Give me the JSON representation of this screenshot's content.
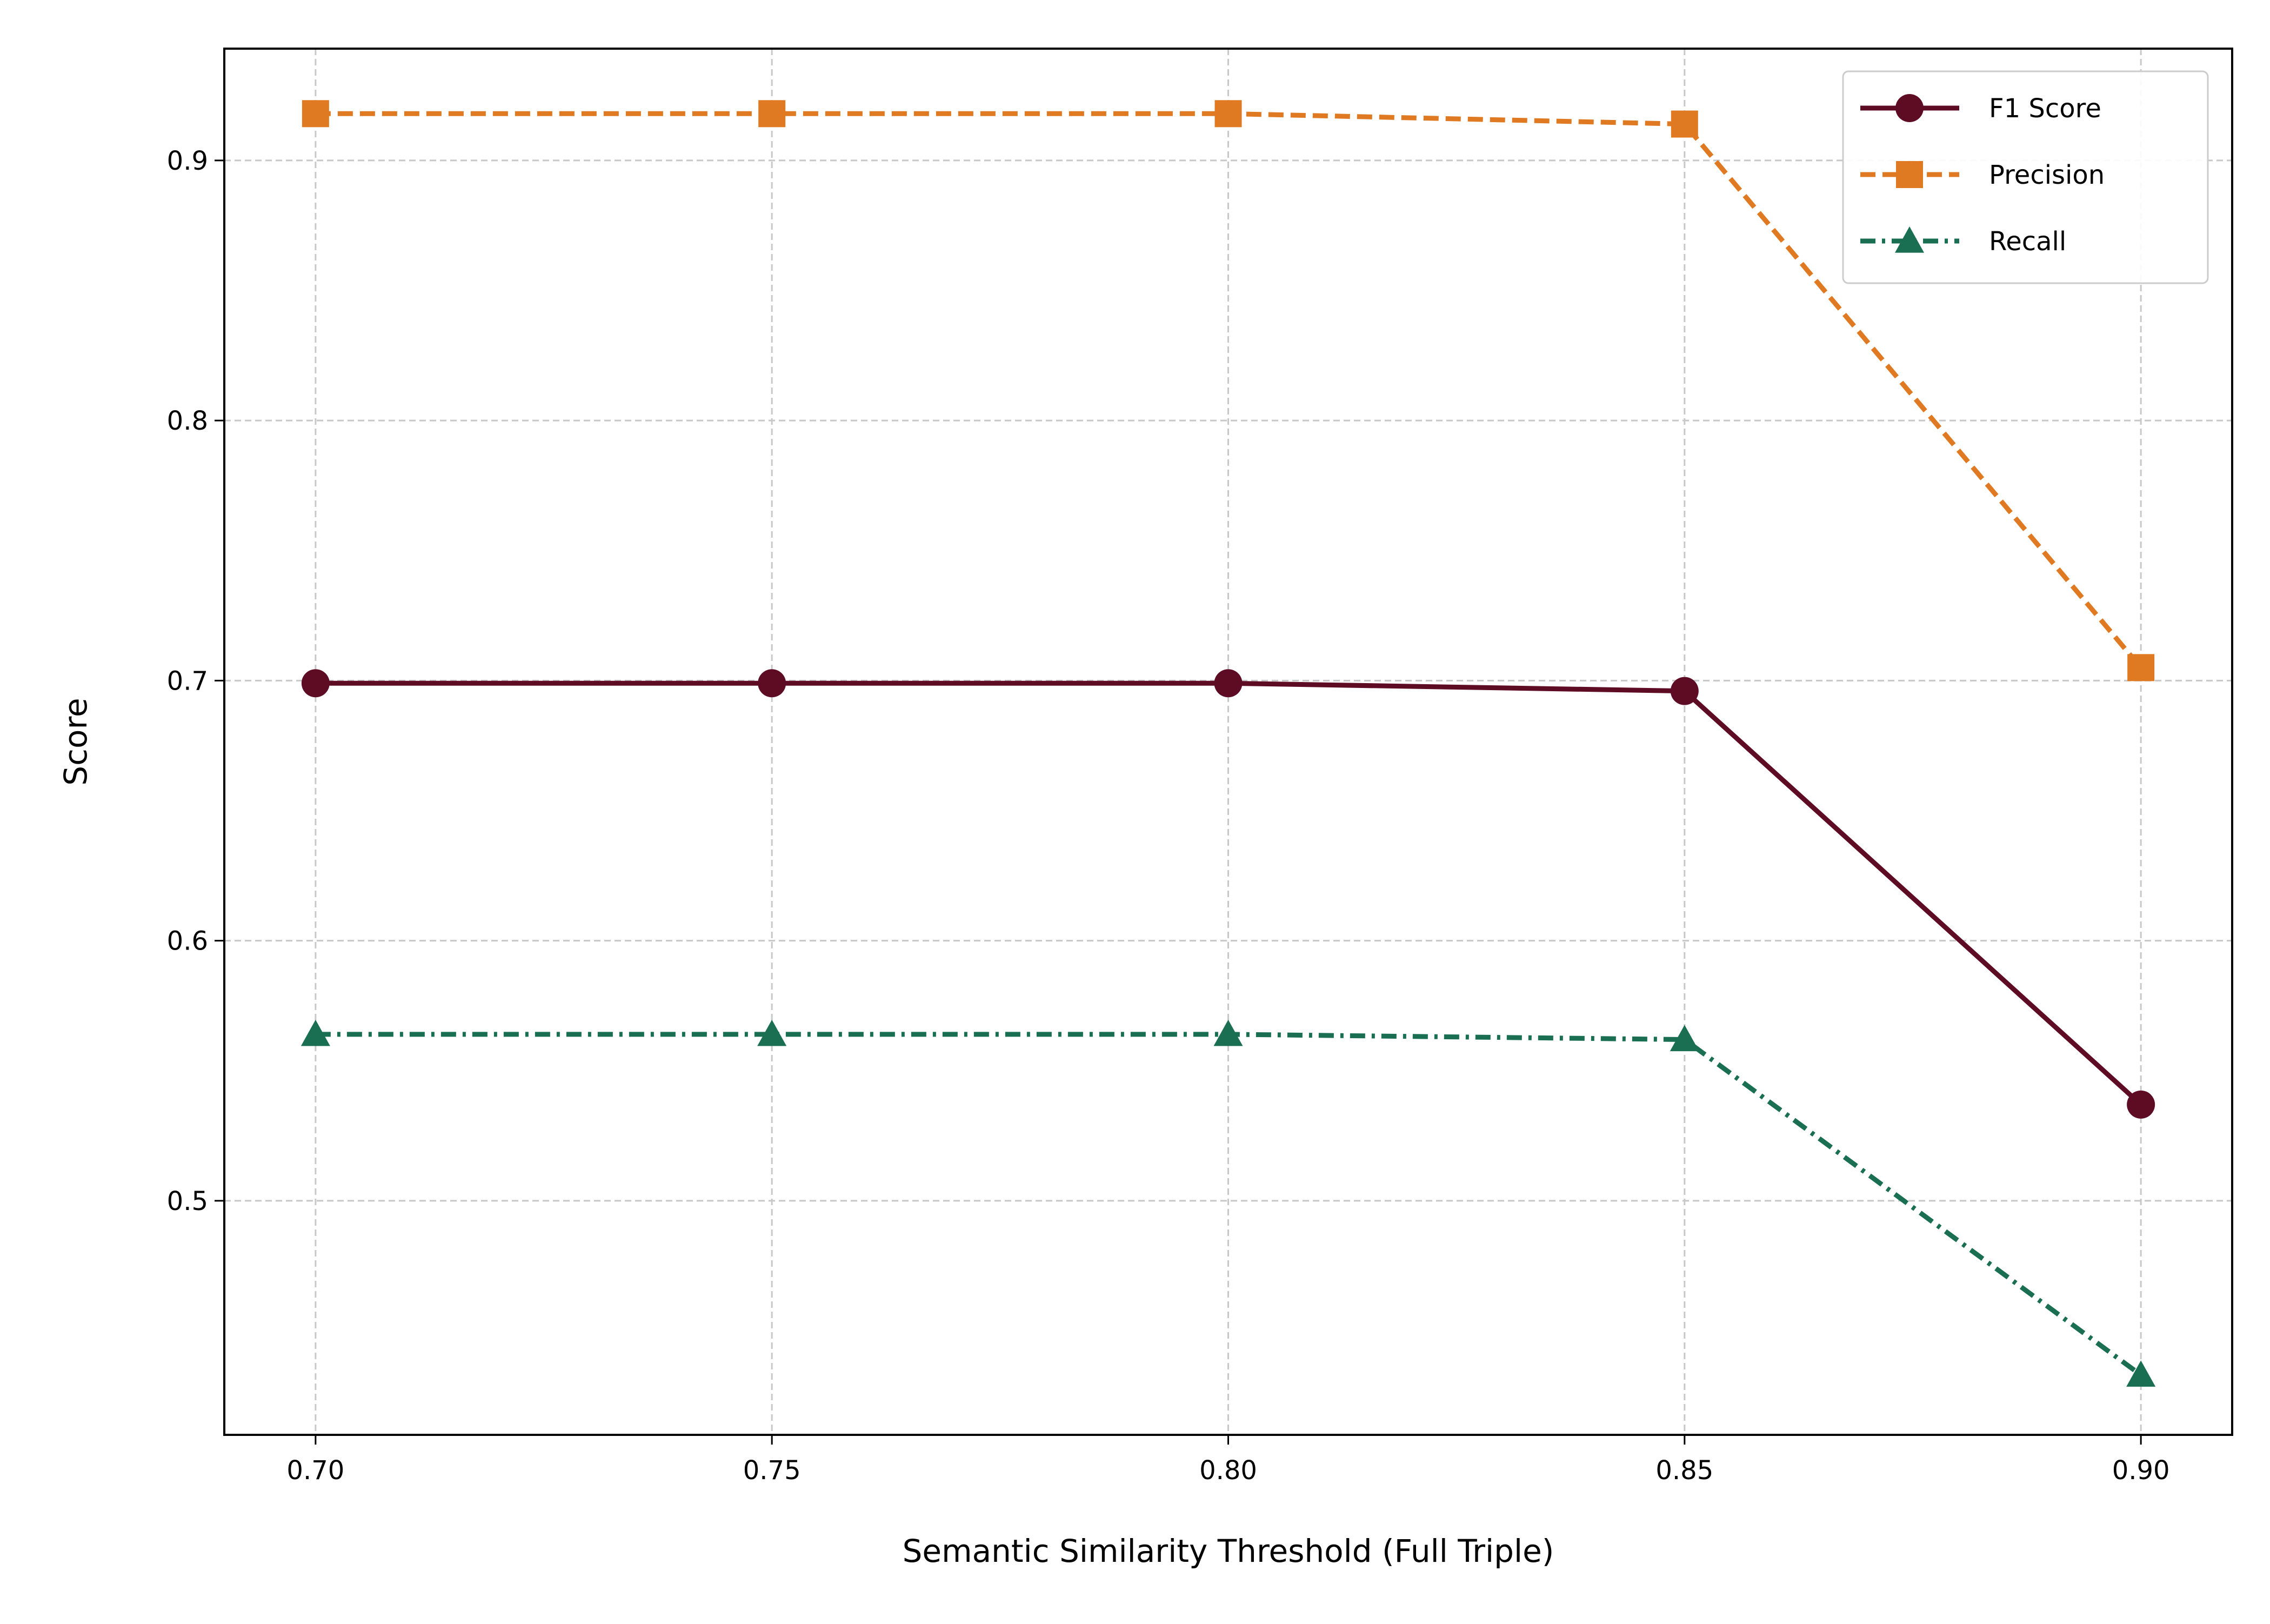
{
  "chart_data": {
    "type": "line",
    "title": "",
    "xlabel": "Semantic Similarity Threshold (Full Triple)",
    "ylabel": "Score",
    "x": [
      0.7,
      0.75,
      0.8,
      0.85,
      0.9
    ],
    "x_tick_labels": [
      "0.70",
      "0.75",
      "0.80",
      "0.85",
      "0.90"
    ],
    "y_tick_values": [
      0.5,
      0.6,
      0.7,
      0.8,
      0.9
    ],
    "y_tick_labels": [
      "0.5",
      "0.6",
      "0.7",
      "0.8",
      "0.9"
    ],
    "xlim": [
      0.69,
      0.91
    ],
    "ylim": [
      0.41,
      0.943
    ],
    "grid": true,
    "legend_position": "top-right",
    "series": [
      {
        "name": "F1 Score",
        "values": [
          0.699,
          0.699,
          0.699,
          0.696,
          0.537
        ],
        "color": "#5e0b24",
        "marker": "circle",
        "line_style": "solid"
      },
      {
        "name": "Precision",
        "values": [
          0.918,
          0.918,
          0.918,
          0.914,
          0.705
        ],
        "color": "#e07a22",
        "marker": "square",
        "line_style": "dashed"
      },
      {
        "name": "Recall",
        "values": [
          0.564,
          0.564,
          0.564,
          0.562,
          0.433
        ],
        "color": "#1a6e52",
        "marker": "triangle",
        "line_style": "dashdot"
      }
    ]
  }
}
